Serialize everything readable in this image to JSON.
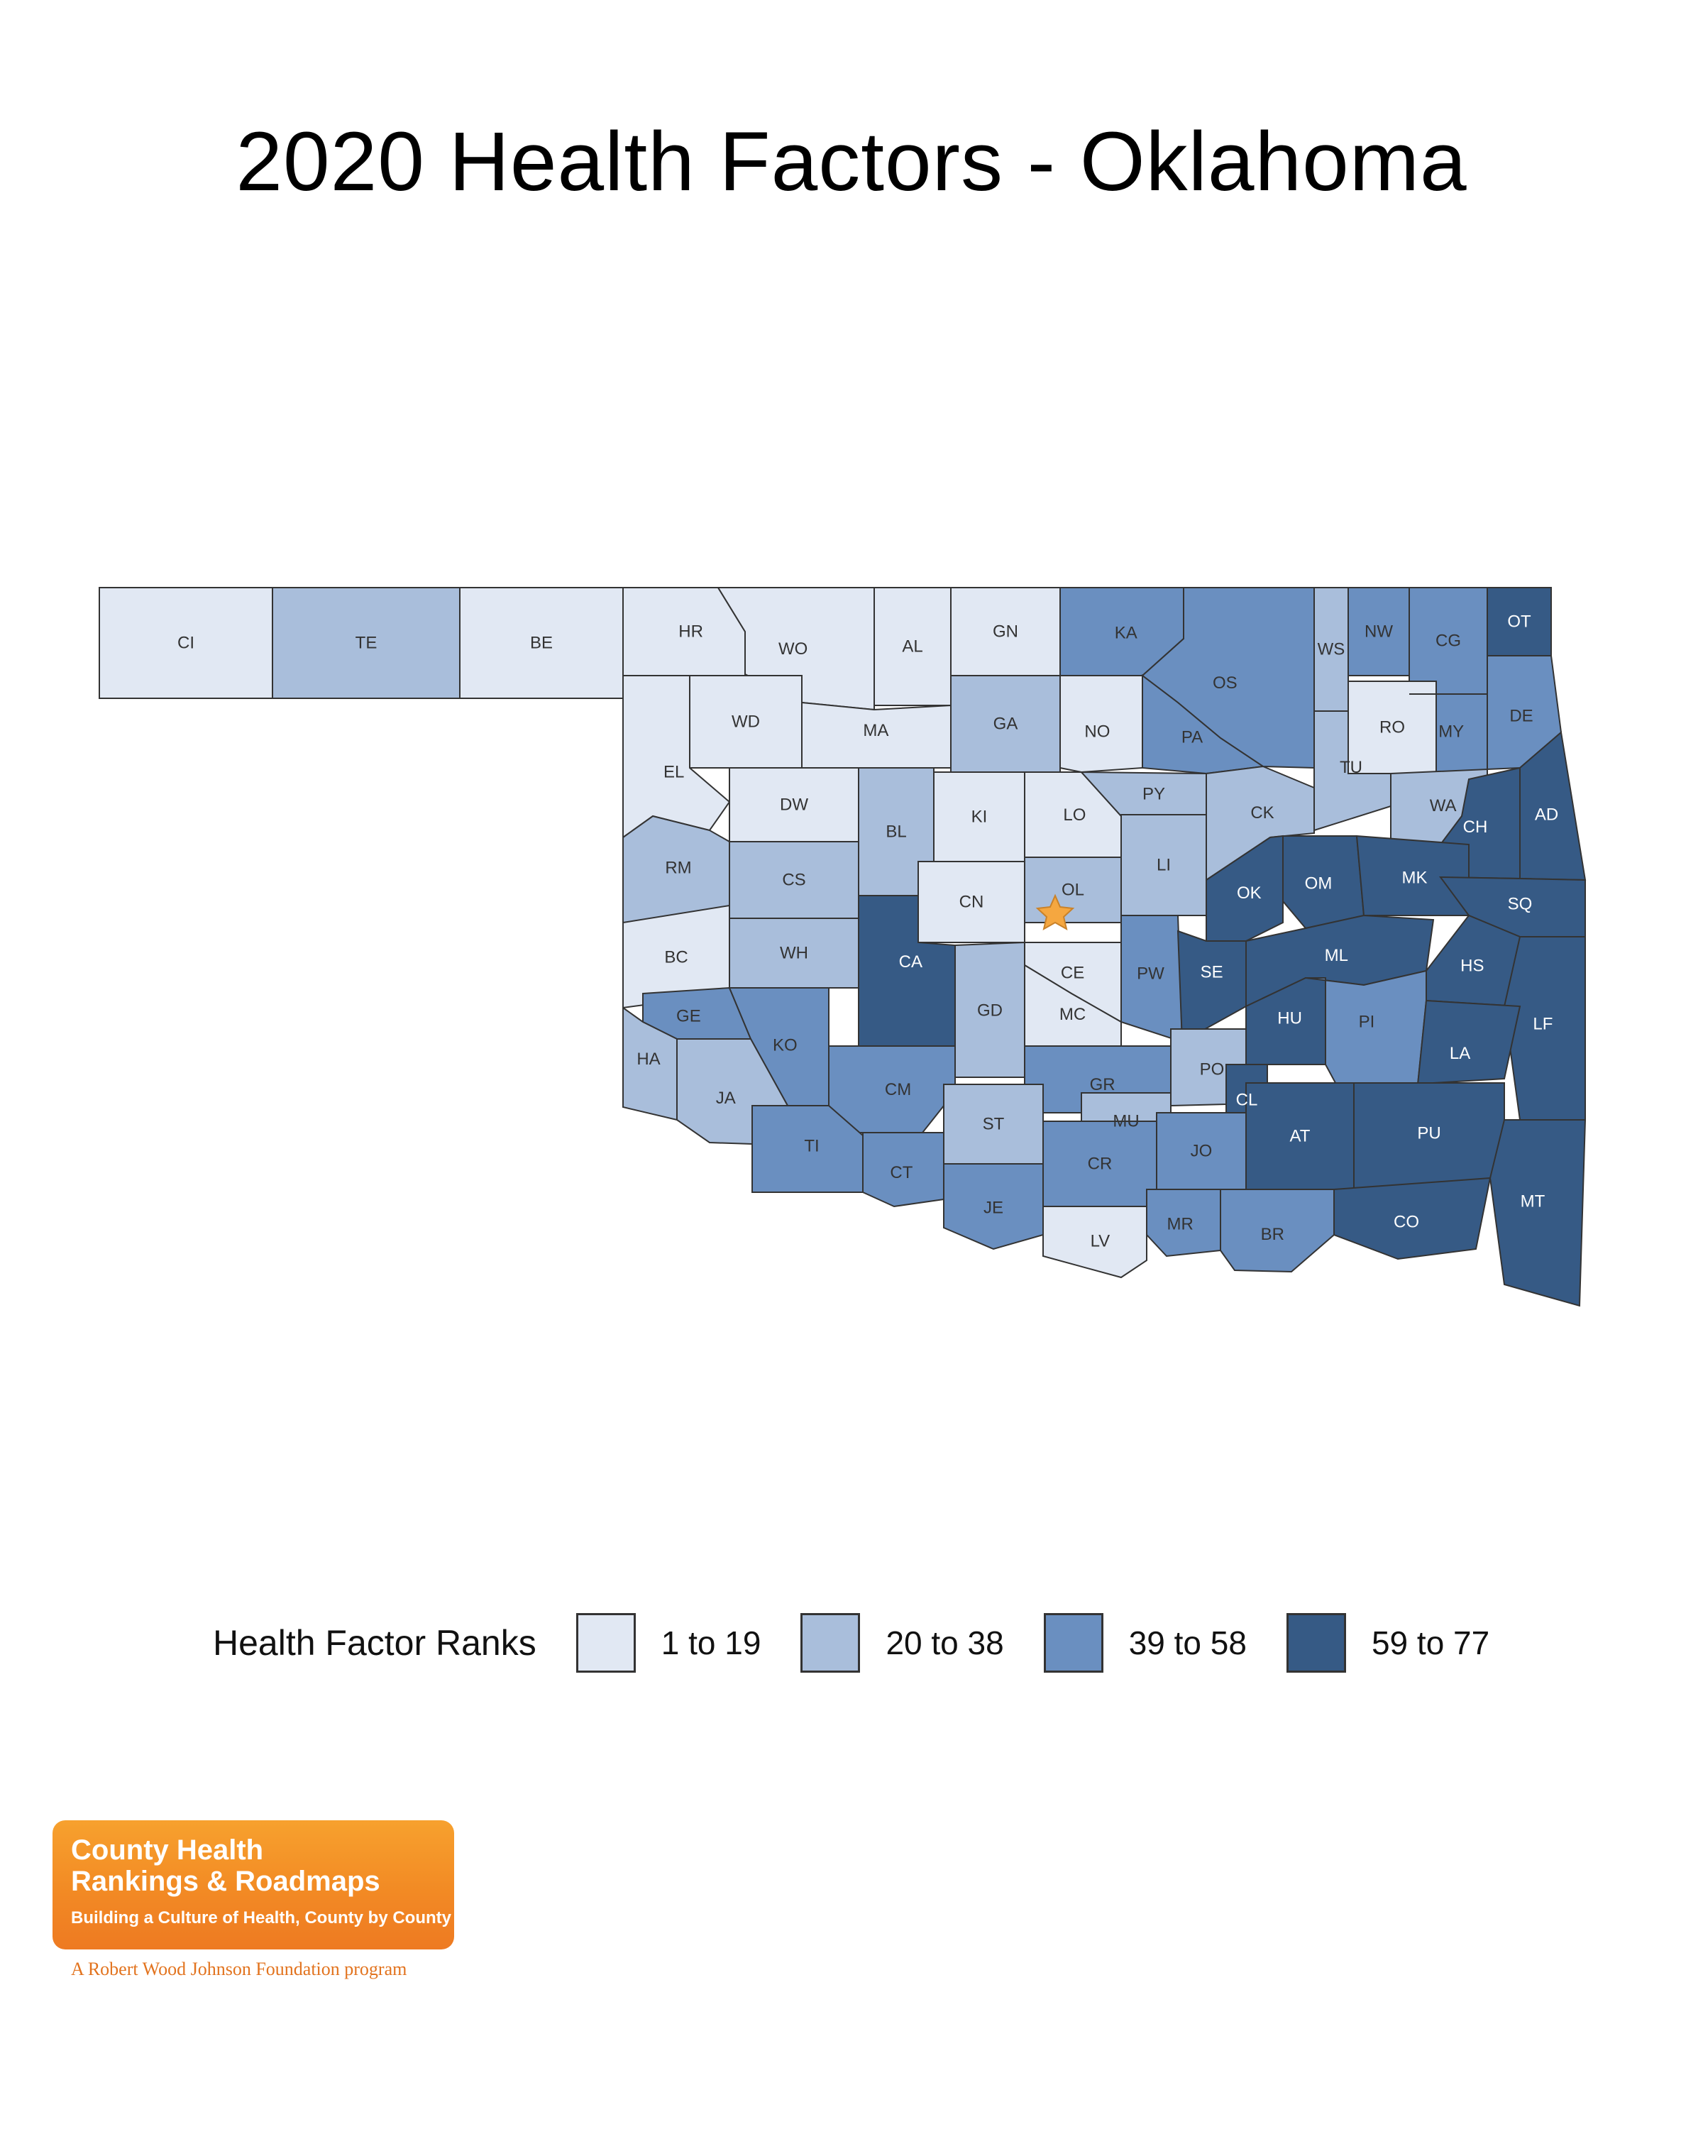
{
  "title": "2020 Health Factors - Oklahoma",
  "colors": {
    "1": "#e1e8f3",
    "2": "#a9bedb",
    "3": "#6a8fc0",
    "4": "#365a85",
    "border": "#333333",
    "star": "#f5a740"
  },
  "legend": {
    "title": "Health Factor Ranks",
    "items": [
      {
        "label": "1 to 19",
        "color": "#e1e8f3"
      },
      {
        "label": "20 to 38",
        "color": "#a9bedb"
      },
      {
        "label": "39 to 58",
        "color": "#6a8fc0"
      },
      {
        "label": "59 to 77",
        "color": "#365a85"
      }
    ]
  },
  "counties": [
    {
      "code": "CI",
      "bin": 1
    },
    {
      "code": "TE",
      "bin": 2
    },
    {
      "code": "BE",
      "bin": 1
    },
    {
      "code": "HR",
      "bin": 1
    },
    {
      "code": "WO",
      "bin": 1
    },
    {
      "code": "AL",
      "bin": 1
    },
    {
      "code": "GN",
      "bin": 1
    },
    {
      "code": "KA",
      "bin": 3
    },
    {
      "code": "OS",
      "bin": 3
    },
    {
      "code": "WS",
      "bin": 2
    },
    {
      "code": "NW",
      "bin": 3
    },
    {
      "code": "CG",
      "bin": 3
    },
    {
      "code": "OT",
      "bin": 4
    },
    {
      "code": "WD",
      "bin": 1
    },
    {
      "code": "MA",
      "bin": 1
    },
    {
      "code": "GA",
      "bin": 2
    },
    {
      "code": "NO",
      "bin": 1
    },
    {
      "code": "PA",
      "bin": 3
    },
    {
      "code": "RO",
      "bin": 1
    },
    {
      "code": "MY",
      "bin": 3
    },
    {
      "code": "DE",
      "bin": 3
    },
    {
      "code": "EL",
      "bin": 1
    },
    {
      "code": "DW",
      "bin": 1
    },
    {
      "code": "BL",
      "bin": 2
    },
    {
      "code": "KI",
      "bin": 1
    },
    {
      "code": "LO",
      "bin": 1
    },
    {
      "code": "PY",
      "bin": 2
    },
    {
      "code": "CK",
      "bin": 2
    },
    {
      "code": "TU",
      "bin": 2
    },
    {
      "code": "WA",
      "bin": 2
    },
    {
      "code": "CH",
      "bin": 4
    },
    {
      "code": "AD",
      "bin": 4
    },
    {
      "code": "RM",
      "bin": 2
    },
    {
      "code": "CS",
      "bin": 2
    },
    {
      "code": "CN",
      "bin": 1
    },
    {
      "code": "OL",
      "bin": 2
    },
    {
      "code": "LI",
      "bin": 2
    },
    {
      "code": "OM",
      "bin": 4
    },
    {
      "code": "MK",
      "bin": 4
    },
    {
      "code": "OK",
      "bin": 4
    },
    {
      "code": "SQ",
      "bin": 4
    },
    {
      "code": "BC",
      "bin": 1
    },
    {
      "code": "WH",
      "bin": 2
    },
    {
      "code": "CA",
      "bin": 4
    },
    {
      "code": "CE",
      "bin": 1
    },
    {
      "code": "PW",
      "bin": 3
    },
    {
      "code": "SE",
      "bin": 4
    },
    {
      "code": "ML",
      "bin": 4
    },
    {
      "code": "HS",
      "bin": 4
    },
    {
      "code": "GD",
      "bin": 2
    },
    {
      "code": "MC",
      "bin": 1
    },
    {
      "code": "HU",
      "bin": 4
    },
    {
      "code": "LF",
      "bin": 4
    },
    {
      "code": "GE",
      "bin": 3
    },
    {
      "code": "KO",
      "bin": 3
    },
    {
      "code": "PI",
      "bin": 3
    },
    {
      "code": "LA",
      "bin": 4
    },
    {
      "code": "HA",
      "bin": 2
    },
    {
      "code": "CM",
      "bin": 3
    },
    {
      "code": "GR",
      "bin": 3
    },
    {
      "code": "PO",
      "bin": 2
    },
    {
      "code": "JA",
      "bin": 2
    },
    {
      "code": "CL",
      "bin": 4
    },
    {
      "code": "ST",
      "bin": 2
    },
    {
      "code": "MU",
      "bin": 2
    },
    {
      "code": "TI",
      "bin": 3
    },
    {
      "code": "AT",
      "bin": 4
    },
    {
      "code": "PU",
      "bin": 4
    },
    {
      "code": "CT",
      "bin": 3
    },
    {
      "code": "JO",
      "bin": 3
    },
    {
      "code": "CR",
      "bin": 3
    },
    {
      "code": "JE",
      "bin": 3
    },
    {
      "code": "MT",
      "bin": 4
    },
    {
      "code": "MR",
      "bin": 3
    },
    {
      "code": "CO",
      "bin": 4
    },
    {
      "code": "BR",
      "bin": 3
    },
    {
      "code": "LV",
      "bin": 1
    }
  ],
  "capital_county": "OL",
  "logo": {
    "line1": "County Health",
    "line2": "Rankings & Roadmaps",
    "tagline": "Building a Culture of Health, County by County",
    "sub": "A Robert Wood Johnson Foundation program"
  }
}
